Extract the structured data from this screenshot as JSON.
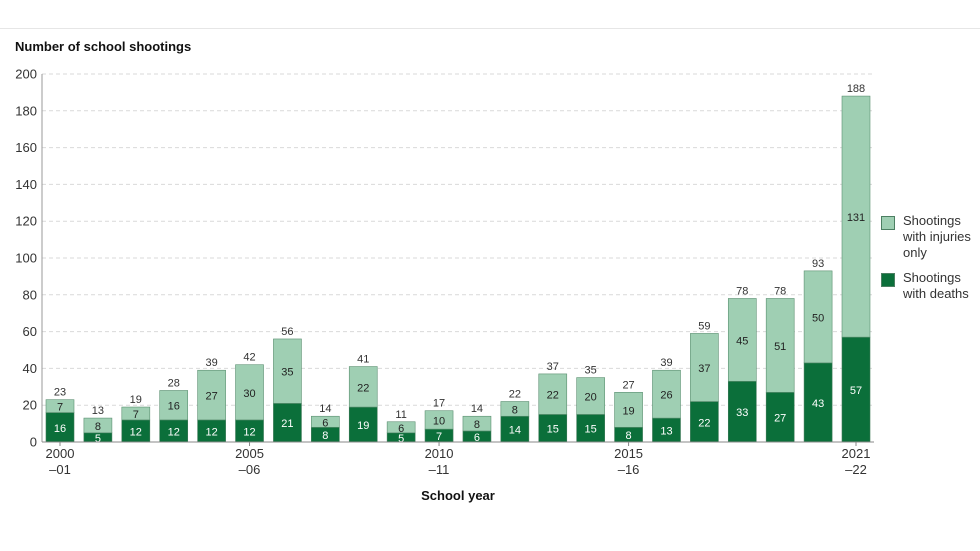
{
  "chart_data": {
    "type": "bar",
    "stacked": true,
    "ylabel": "Number of school shootings",
    "xlabel": "School year",
    "ylim": [
      0,
      200
    ],
    "yticks": [
      0,
      20,
      40,
      60,
      80,
      100,
      120,
      140,
      160,
      180,
      200
    ],
    "categories": [
      "2000–01",
      "2001–02",
      "2002–03",
      "2003–04",
      "2004–05",
      "2005–06",
      "2006–07",
      "2007–08",
      "2008–09",
      "2009–10",
      "2010–11",
      "2011–12",
      "2012–13",
      "2013–14",
      "2014–15",
      "2015–16",
      "2016–17",
      "2017–18",
      "2018–19",
      "2019–20",
      "2020–21",
      "2021–22"
    ],
    "x_tick_labels": [
      {
        "index": 0,
        "line1": "2000",
        "line2": "–01"
      },
      {
        "index": 5,
        "line1": "2005",
        "line2": "–06"
      },
      {
        "index": 10,
        "line1": "2010",
        "line2": "–11"
      },
      {
        "index": 15,
        "line1": "2015",
        "line2": "–16"
      },
      {
        "index": 21,
        "line1": "2021",
        "line2": "–22"
      }
    ],
    "series": [
      {
        "name": "Shootings with deaths",
        "color": "#0b6f3a",
        "label_color": "#ffffff",
        "values": [
          16,
          5,
          12,
          12,
          12,
          12,
          21,
          8,
          19,
          5,
          7,
          6,
          14,
          15,
          15,
          8,
          13,
          22,
          33,
          27,
          43,
          57
        ]
      },
      {
        "name": "Shootings with injuries only",
        "color": "#9fcfb3",
        "label_color": "#222222",
        "values": [
          7,
          8,
          7,
          16,
          27,
          30,
          35,
          6,
          22,
          6,
          10,
          8,
          8,
          22,
          20,
          19,
          26,
          37,
          45,
          51,
          50,
          131
        ]
      }
    ],
    "totals": [
      23,
      13,
      19,
      28,
      39,
      42,
      56,
      14,
      41,
      11,
      17,
      14,
      22,
      37,
      35,
      27,
      39,
      59,
      78,
      78,
      93,
      188
    ]
  },
  "legend": {
    "injuries_label": [
      "Shootings",
      "with injuries",
      "only"
    ],
    "deaths_label": [
      "Shootings",
      "with deaths"
    ]
  }
}
